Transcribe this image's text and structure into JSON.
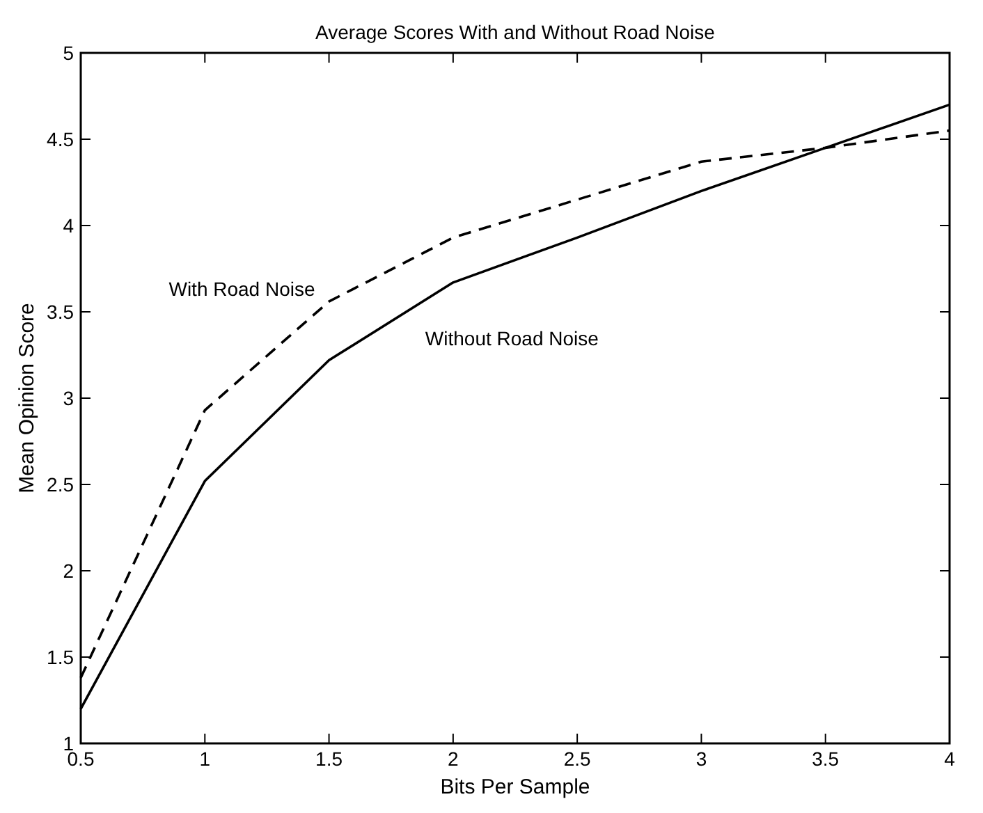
{
  "chart_data": {
    "type": "line",
    "title": "Average Scores With and Without Road Noise",
    "xlabel": "Bits Per Sample",
    "ylabel": "Mean Opinion Score",
    "x": [
      0.5,
      1,
      1.5,
      2,
      2.5,
      3,
      3.5,
      4
    ],
    "series": [
      {
        "name": "With Road Noise",
        "color": "#000000",
        "line_style": "dashed",
        "values": [
          1.38,
          2.93,
          3.56,
          3.93,
          4.15,
          4.37,
          4.45,
          4.55
        ]
      },
      {
        "name": "Without Road Noise",
        "color": "#000000",
        "line_style": "solid",
        "values": [
          1.2,
          2.52,
          3.22,
          3.67,
          3.93,
          4.2,
          4.45,
          4.7
        ]
      }
    ],
    "xlim": [
      0.5,
      4
    ],
    "ylim": [
      1,
      5
    ],
    "xticks": [
      0.5,
      1,
      1.5,
      2,
      2.5,
      3,
      3.5,
      4
    ],
    "yticks": [
      1,
      1.5,
      2,
      2.5,
      3,
      3.5,
      4,
      4.5,
      5
    ],
    "grid": false,
    "marker": "none"
  }
}
